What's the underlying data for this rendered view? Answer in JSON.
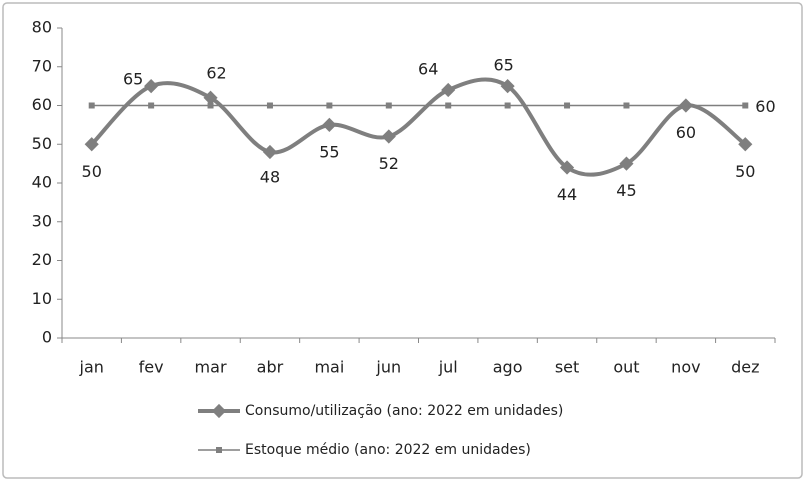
{
  "chart_data": {
    "type": "line",
    "categories": [
      "jan",
      "fev",
      "mar",
      "abr",
      "mai",
      "jun",
      "jul",
      "ago",
      "set",
      "out",
      "nov",
      "dez"
    ],
    "series": [
      {
        "name": "Consumo/utilização (ano: 2022 em unidades)",
        "color": "#7f7f7f",
        "values": [
          50,
          65,
          62,
          48,
          55,
          52,
          64,
          65,
          44,
          45,
          60,
          50
        ]
      },
      {
        "name": "Estoque médio (ano: 2022 em unidades)",
        "color": "#7f7f7f",
        "values": [
          60,
          60,
          60,
          60,
          60,
          60,
          60,
          60,
          60,
          60,
          60,
          60
        ]
      }
    ],
    "ylim": [
      0,
      80
    ],
    "yticks": [
      0,
      10,
      20,
      30,
      40,
      50,
      60,
      70,
      80
    ],
    "grid": false,
    "legend": "bottom"
  }
}
